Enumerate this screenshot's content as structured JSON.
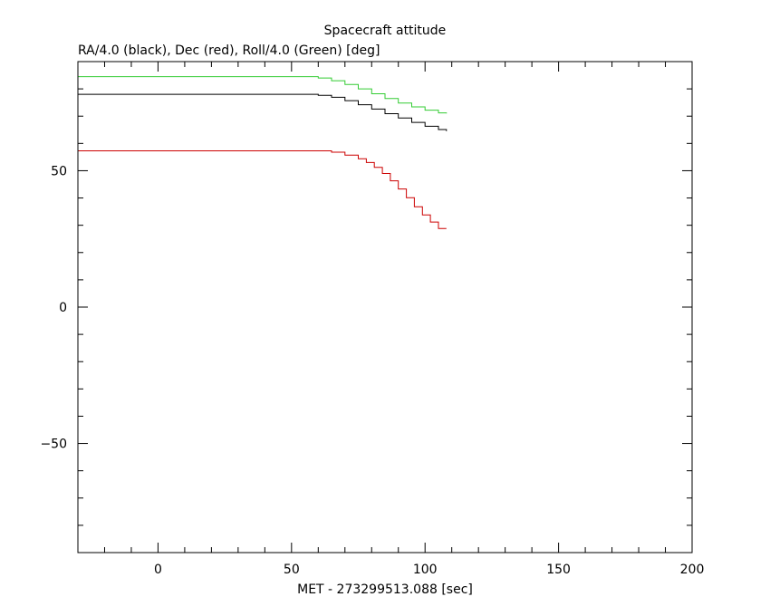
{
  "chart_data": {
    "type": "line",
    "title": "Spacecraft attitude",
    "ylabel": "RA/4.0 (black), Dec (red), Roll/4.0 (Green) [deg]",
    "xlabel": "MET - 273299513.088 [sec]",
    "xlim": [
      -30,
      200
    ],
    "ylim": [
      -90,
      90
    ],
    "x_ticks": [
      0,
      50,
      100,
      150,
      200
    ],
    "y_ticks": [
      -50,
      0,
      50
    ],
    "x_minor_step": 10,
    "y_minor_step": 10,
    "grid": false,
    "step": true,
    "series": [
      {
        "color": "#000000",
        "x": [
          -30,
          55,
          60,
          65,
          70,
          75,
          80,
          85,
          90,
          95,
          100,
          105,
          108
        ],
        "y": [
          78.0,
          78.0,
          77.6,
          76.9,
          75.7,
          74.2,
          72.6,
          70.9,
          69.3,
          67.7,
          66.3,
          65.1,
          64.5
        ]
      },
      {
        "color": "#cc0000",
        "x": [
          -30,
          60,
          65,
          70,
          75,
          78,
          81,
          84,
          87,
          90,
          93,
          96,
          99,
          102,
          105,
          108
        ],
        "y": [
          57.3,
          57.3,
          56.8,
          55.7,
          54.4,
          53.0,
          51.2,
          49.0,
          46.3,
          43.3,
          40.1,
          36.8,
          33.8,
          31.2,
          28.8,
          28.8
        ]
      },
      {
        "color": "#33cc33",
        "x": [
          -30,
          55,
          60,
          65,
          70,
          75,
          80,
          85,
          90,
          95,
          100,
          105,
          108
        ],
        "y": [
          84.5,
          84.5,
          84.0,
          83.0,
          81.6,
          80.0,
          78.2,
          76.5,
          74.8,
          73.4,
          72.2,
          71.2,
          71.0
        ]
      }
    ]
  }
}
